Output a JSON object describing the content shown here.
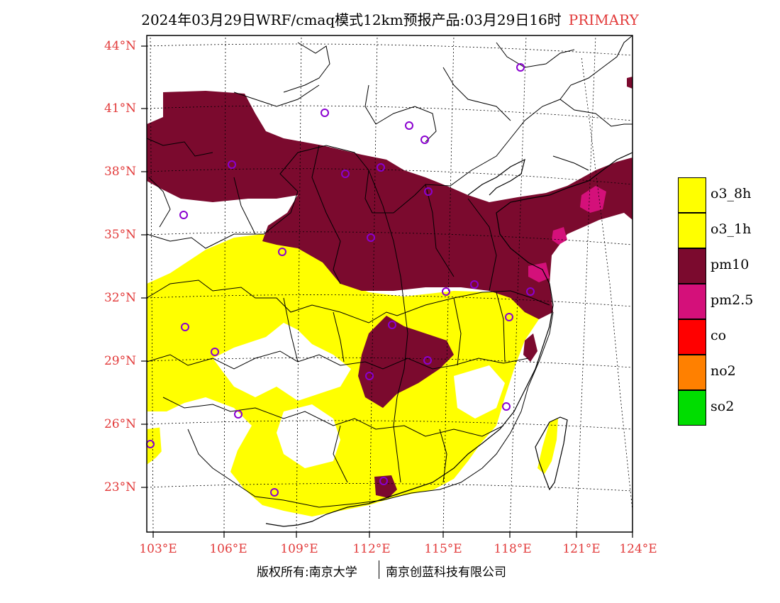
{
  "title": {
    "main": "2024年03月29日WRF/cmaq模式12km预报产品:03月29日16时",
    "tag": "PRIMARY"
  },
  "axes": {
    "lat_labels": [
      "44°N",
      "41°N",
      "38°N",
      "35°N",
      "32°N",
      "29°N",
      "26°N",
      "23°N"
    ],
    "lon_labels": [
      "103°E",
      "106°E",
      "109°E",
      "112°E",
      "115°E",
      "118°E",
      "121°E",
      "124°E"
    ]
  },
  "legend": [
    {
      "label": "o3_8h",
      "color": "#ffff00"
    },
    {
      "label": "o3_1h",
      "color": "#ffff00"
    },
    {
      "label": "pm10",
      "color": "#7b0a2e"
    },
    {
      "label": "pm2.5",
      "color": "#d4107a"
    },
    {
      "label": "co",
      "color": "#ff0000"
    },
    {
      "label": "no2",
      "color": "#ff8000"
    },
    {
      "label": "so2",
      "color": "#00dd00"
    }
  ],
  "colors": {
    "label_red": "#e23a3a",
    "station_marker": "#8a00d0"
  },
  "footer": {
    "left": "版权所有:南京大学",
    "right": "南京创蓝科技有限公司"
  }
}
